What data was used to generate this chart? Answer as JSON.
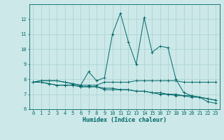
{
  "xlabel": "Humidex (Indice chaleur)",
  "xlim": [
    -0.5,
    23.5
  ],
  "ylim": [
    6,
    13
  ],
  "yticks": [
    6,
    7,
    8,
    9,
    10,
    11,
    12
  ],
  "xticks": [
    0,
    1,
    2,
    3,
    4,
    5,
    6,
    7,
    8,
    9,
    10,
    11,
    12,
    13,
    14,
    15,
    16,
    17,
    18,
    19,
    20,
    21,
    22,
    23
  ],
  "bg_color": "#cce8e8",
  "line_color": "#006868",
  "grid_color": "#aad0d0",
  "lines": [
    [
      7.8,
      7.9,
      7.9,
      7.9,
      7.8,
      7.7,
      7.6,
      8.5,
      7.9,
      8.1,
      11.0,
      12.4,
      10.5,
      9.0,
      12.1,
      9.8,
      10.2,
      10.1,
      8.0,
      7.1,
      6.9,
      6.8,
      6.5,
      6.4
    ],
    [
      7.8,
      7.9,
      7.9,
      7.9,
      7.8,
      7.7,
      7.6,
      7.6,
      7.6,
      7.8,
      7.8,
      7.8,
      7.8,
      7.9,
      7.9,
      7.9,
      7.9,
      7.9,
      7.9,
      7.8,
      7.8,
      7.8,
      7.8,
      7.8
    ],
    [
      7.8,
      7.8,
      7.7,
      7.6,
      7.6,
      7.6,
      7.5,
      7.5,
      7.5,
      7.3,
      7.3,
      7.3,
      7.3,
      7.2,
      7.2,
      7.1,
      7.0,
      7.0,
      6.9,
      6.9,
      6.8,
      6.8,
      6.7,
      6.6
    ],
    [
      7.8,
      7.8,
      7.7,
      7.6,
      7.6,
      7.6,
      7.5,
      7.5,
      7.5,
      7.4,
      7.4,
      7.3,
      7.3,
      7.2,
      7.2,
      7.1,
      7.1,
      7.0,
      7.0,
      6.9,
      6.9,
      6.8,
      6.7,
      6.6
    ]
  ],
  "tick_fontsize": 5.0,
  "xlabel_fontsize": 6.0
}
